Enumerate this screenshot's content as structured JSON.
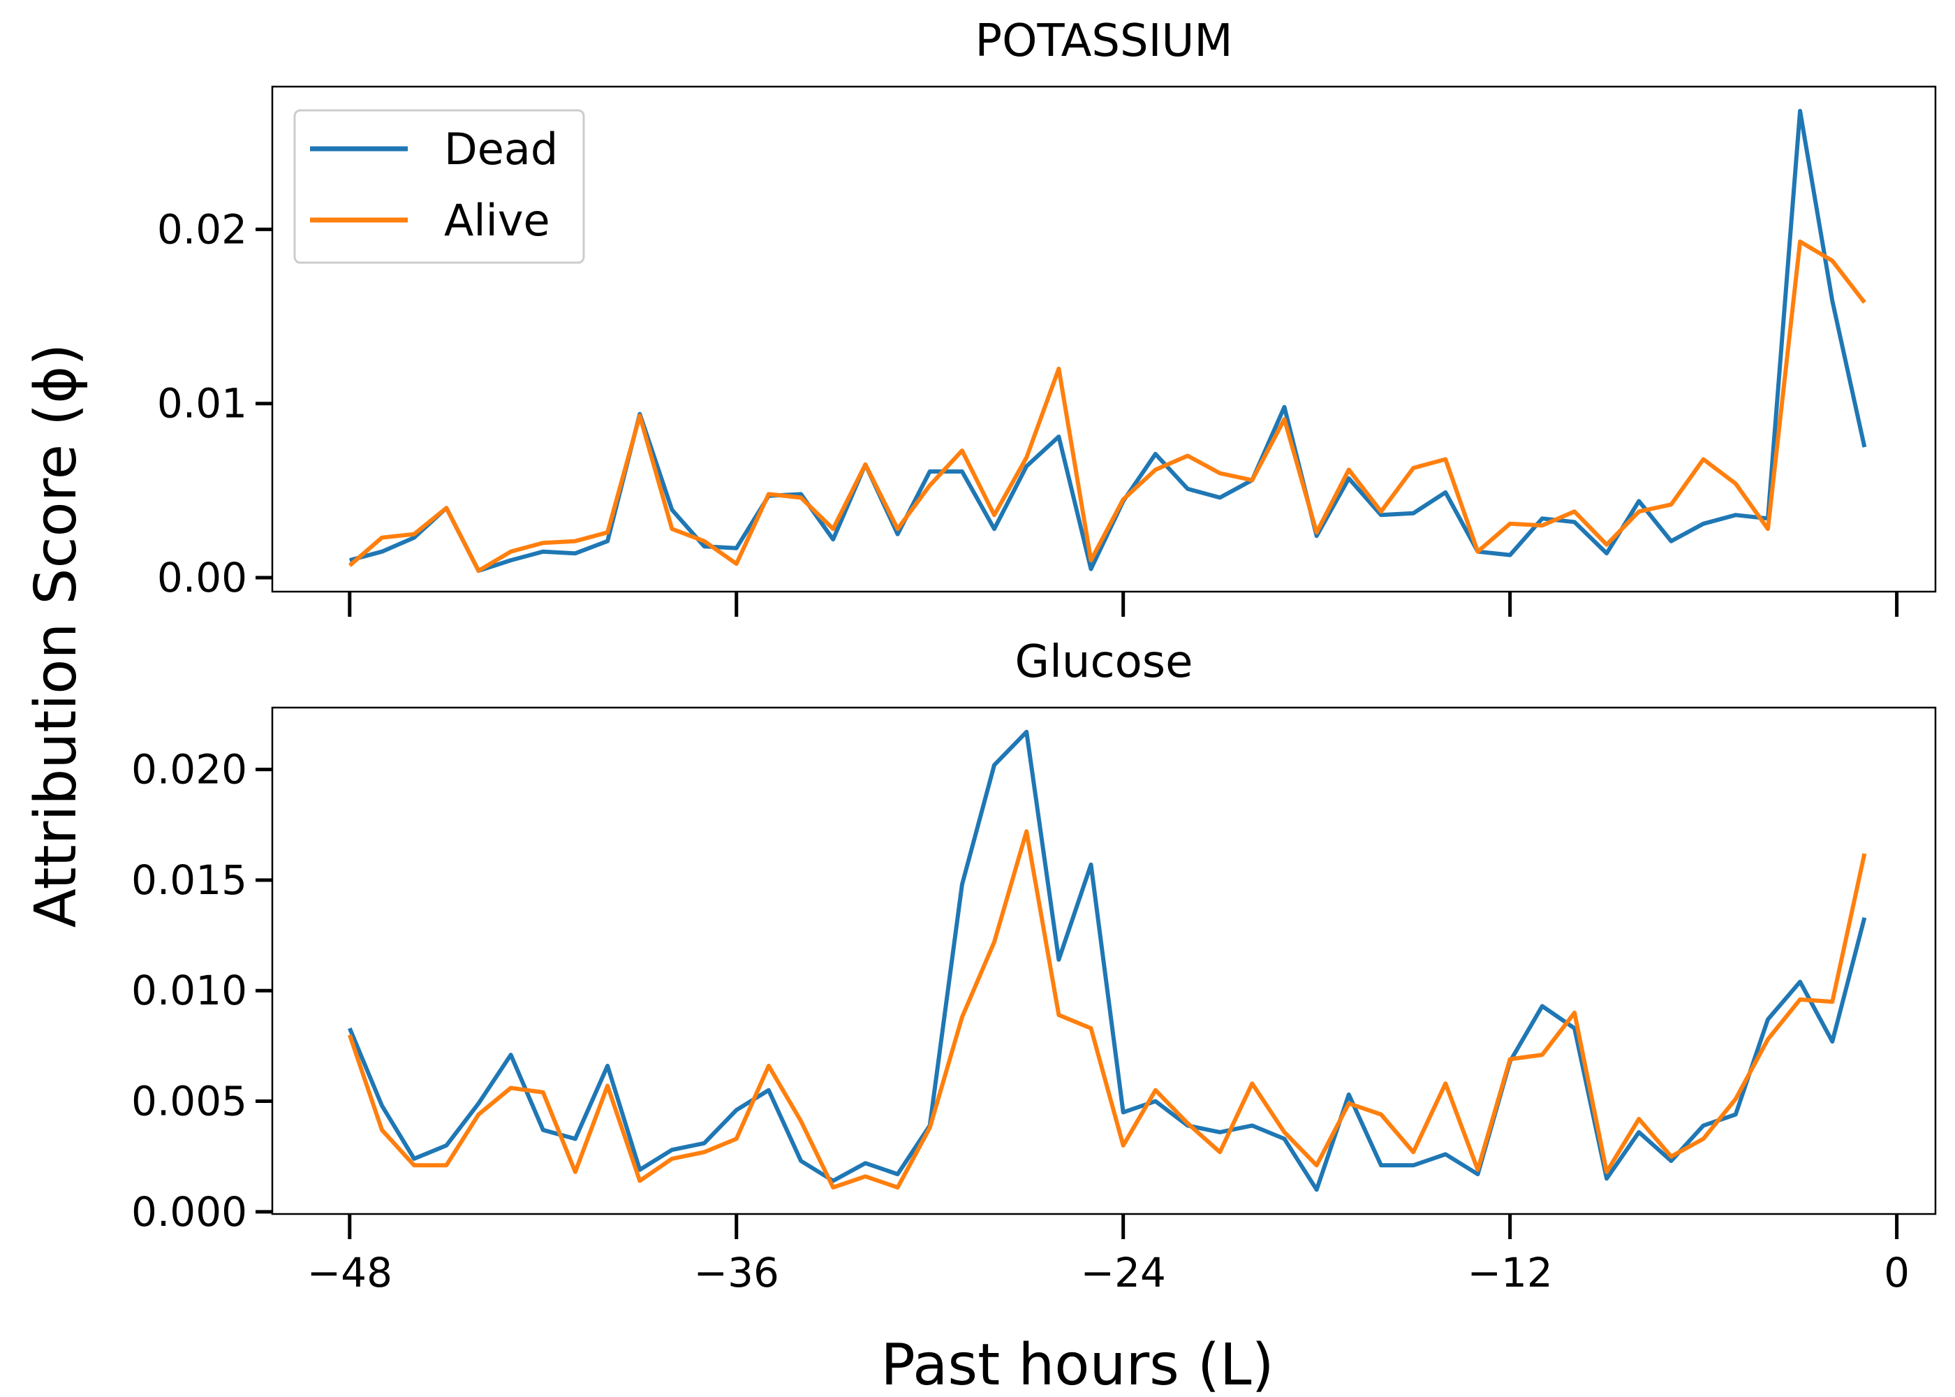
{
  "chart_data": {
    "type": "line",
    "xlabel": "Past hours (L)",
    "ylabel": "Attribution Score (ϕ)",
    "x_ticks": [
      -48,
      -36,
      -24,
      -12,
      0
    ],
    "x_tick_labels": [
      "−48",
      "−36",
      "−24",
      "−12",
      "0"
    ],
    "xlim": [
      -50.4,
      1.2
    ],
    "x": [
      -48,
      -47,
      -46,
      -45,
      -44,
      -43,
      -42,
      -41,
      -40,
      -39,
      -38,
      -37,
      -36,
      -35,
      -34,
      -33,
      -32,
      -31,
      -30,
      -29,
      -28,
      -27,
      -26,
      -25,
      -24,
      -23,
      -22,
      -21,
      -20,
      -19,
      -18,
      -17,
      -16,
      -15,
      -14,
      -13,
      -12,
      -11,
      -10,
      -9,
      -8,
      -7,
      -6,
      -5,
      -4,
      -3,
      -2,
      -1
    ],
    "legend": {
      "placement": "upper-left",
      "entries": [
        {
          "label": "Dead",
          "color": "#1f77b4"
        },
        {
          "label": "Alive",
          "color": "#ff7f0e"
        }
      ]
    },
    "panels": [
      {
        "title": "POTASSIUM",
        "ylim": [
          -0.0008,
          0.0282
        ],
        "y_ticks": [
          0.0,
          0.01,
          0.02
        ],
        "y_tick_labels": [
          "0.00",
          "0.01",
          "0.02"
        ],
        "series": [
          {
            "name": "Dead",
            "color": "#1f77b4",
            "values": [
              0.001,
              0.0015,
              0.0023,
              0.004,
              0.0004,
              0.001,
              0.0015,
              0.0014,
              0.0021,
              0.0094,
              0.0039,
              0.0018,
              0.0017,
              0.0047,
              0.0048,
              0.0022,
              0.0065,
              0.0025,
              0.0061,
              0.0061,
              0.0028,
              0.0064,
              0.0081,
              0.0005,
              0.0044,
              0.0071,
              0.0051,
              0.0046,
              0.0056,
              0.0098,
              0.0024,
              0.0057,
              0.0036,
              0.0037,
              0.0049,
              0.0015,
              0.0013,
              0.0034,
              0.0032,
              0.0014,
              0.0044,
              0.0021,
              0.0031,
              0.0036,
              0.0034,
              0.0268,
              0.0159,
              0.0075
            ]
          },
          {
            "name": "Alive",
            "color": "#ff7f0e",
            "values": [
              0.0007,
              0.0023,
              0.0025,
              0.004,
              0.0004,
              0.0015,
              0.002,
              0.0021,
              0.0026,
              0.0093,
              0.0028,
              0.0021,
              0.0008,
              0.0048,
              0.0046,
              0.0028,
              0.0065,
              0.0028,
              0.0053,
              0.0073,
              0.0036,
              0.0069,
              0.012,
              0.001,
              0.0045,
              0.0062,
              0.007,
              0.006,
              0.0056,
              0.0091,
              0.0026,
              0.0062,
              0.0038,
              0.0063,
              0.0068,
              0.0015,
              0.0031,
              0.003,
              0.0038,
              0.0019,
              0.0038,
              0.0042,
              0.0068,
              0.0054,
              0.0028,
              0.0193,
              0.0182,
              0.0158
            ]
          }
        ]
      },
      {
        "title": "Glucose",
        "ylim": [
          -0.0001,
          0.0228
        ],
        "y_ticks": [
          0.0,
          0.005,
          0.01,
          0.015,
          0.02
        ],
        "y_tick_labels": [
          "0.000",
          "0.005",
          "0.010",
          "0.015",
          "0.020"
        ],
        "series": [
          {
            "name": "Dead",
            "color": "#1f77b4",
            "values": [
              0.0083,
              0.0048,
              0.0024,
              0.003,
              0.0049,
              0.0071,
              0.0037,
              0.0033,
              0.0066,
              0.0019,
              0.0028,
              0.0031,
              0.0046,
              0.0055,
              0.0023,
              0.0014,
              0.0022,
              0.0017,
              0.0039,
              0.0148,
              0.0202,
              0.0217,
              0.0114,
              0.0157,
              0.0045,
              0.005,
              0.0039,
              0.0036,
              0.0039,
              0.0033,
              0.001,
              0.0053,
              0.0021,
              0.0021,
              0.0026,
              0.0017,
              0.0068,
              0.0093,
              0.0083,
              0.0015,
              0.0036,
              0.0023,
              0.0039,
              0.0044,
              0.0087,
              0.0104,
              0.0077,
              0.0133
            ]
          },
          {
            "name": "Alive",
            "color": "#ff7f0e",
            "values": [
              0.008,
              0.0037,
              0.0021,
              0.0021,
              0.0044,
              0.0056,
              0.0054,
              0.0018,
              0.0057,
              0.0014,
              0.0024,
              0.0027,
              0.0033,
              0.0066,
              0.0041,
              0.0011,
              0.0016,
              0.0011,
              0.0038,
              0.0088,
              0.0122,
              0.0172,
              0.0089,
              0.0083,
              0.003,
              0.0055,
              0.004,
              0.0027,
              0.0058,
              0.0036,
              0.0021,
              0.0049,
              0.0044,
              0.0027,
              0.0058,
              0.0019,
              0.0069,
              0.0071,
              0.009,
              0.0018,
              0.0042,
              0.0025,
              0.0033,
              0.0051,
              0.0078,
              0.0096,
              0.0095,
              0.0162
            ]
          }
        ]
      }
    ]
  }
}
